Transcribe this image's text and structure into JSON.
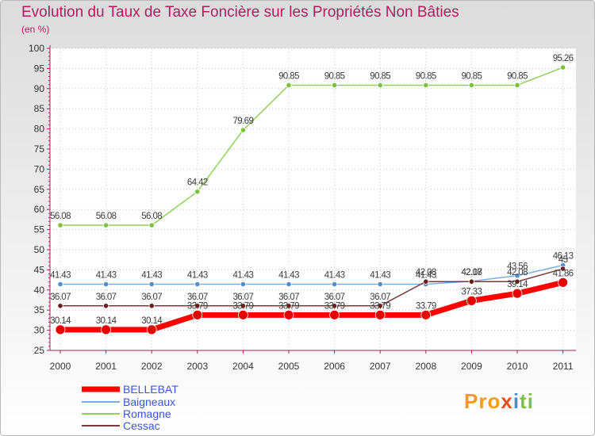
{
  "chart_data": {
    "type": "line",
    "title": "Evolution du Taux de Taxe Foncière sur les Propriétés Non Bâties",
    "subtitle": "(en %)",
    "x": [
      "2000",
      "2001",
      "2002",
      "2003",
      "2004",
      "2005",
      "2006",
      "2007",
      "2008",
      "2009",
      "2010",
      "2011"
    ],
    "ylim": [
      25,
      100
    ],
    "yticks": [
      "25",
      "30",
      "35",
      "40",
      "45",
      "50",
      "55",
      "60",
      "65",
      "70",
      "75",
      "80",
      "85",
      "90",
      "95",
      "100"
    ],
    "series": [
      {
        "name": "Romagne",
        "color": "#8fd15a",
        "dot": "#7cc13c",
        "values": [
          56.08,
          56.08,
          56.08,
          64.42,
          79.69,
          90.85,
          90.85,
          90.85,
          90.85,
          90.85,
          90.85,
          95.26
        ],
        "labels": [
          "56.08",
          "56.08",
          "56.08",
          "64.42",
          "79.69",
          "90.85",
          "90.85",
          "90.85",
          "90.85",
          "90.85",
          "90.85",
          "95.26"
        ]
      },
      {
        "name": "Baigneaux",
        "color": "#7aaede",
        "dot": "#4f8fd0",
        "values": [
          41.43,
          41.43,
          41.43,
          41.43,
          41.43,
          41.43,
          41.43,
          41.43,
          41.43,
          42.17,
          43.56,
          46.13
        ],
        "labels": [
          "41.43",
          "41.43",
          "41.43",
          "41.43",
          "41.43",
          "41.43",
          "41.43",
          "41.43",
          "41.43",
          "42.17",
          "43.56",
          "46.13"
        ]
      },
      {
        "name": "Cessac",
        "color": "#7a3a3a",
        "dot": "#6a1e1e",
        "values": [
          36.07,
          36.07,
          36.07,
          36.07,
          36.07,
          36.07,
          36.07,
          36.07,
          42.08,
          42.08,
          42.08,
          45.26
        ],
        "labels": [
          "36.07",
          "36.07",
          "36.07",
          "36.07",
          "36.07",
          "36.07",
          "36.07",
          "36.07",
          "42.08",
          "42.08",
          "42.08",
          "45"
        ]
      },
      {
        "name": "BELLEBAT",
        "color": "#ff0000",
        "dot": "#e60000",
        "values": [
          30.14,
          30.14,
          30.14,
          33.79,
          33.79,
          33.79,
          33.79,
          33.79,
          33.79,
          37.33,
          39.14,
          41.86
        ],
        "labels": [
          "30.14",
          "30.14",
          "30.14",
          "33.79",
          "33.79",
          "33.79",
          "33.79",
          "33.79",
          "33.79",
          "37.33",
          "39.14",
          "41.86"
        ]
      }
    ],
    "legend": [
      "BELLEBAT",
      "Baigneaux",
      "Romagne",
      "Cessac"
    ]
  },
  "brand": {
    "p1": "Pro",
    "p2": "x",
    "p3": "i",
    "p4": "t",
    "p5": "i"
  }
}
